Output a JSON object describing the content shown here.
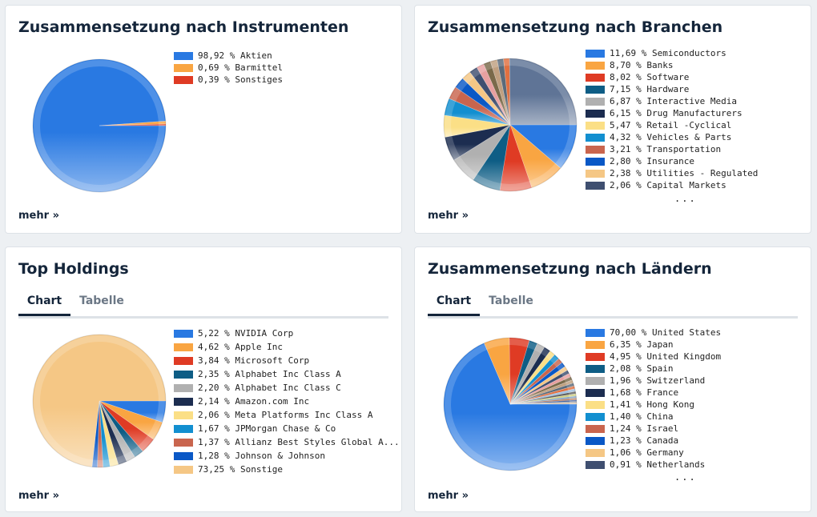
{
  "colors": [
    "#2979e2",
    "#f9a542",
    "#df3b24",
    "#0e5d85",
    "#b0b0b0",
    "#1c2d50",
    "#fbdf86",
    "#128fd0",
    "#c9654e",
    "#0a58c6",
    "#f5c785",
    "#3f4f70"
  ],
  "cards": {
    "instruments": {
      "title": "Zusammensetzung nach Instrumenten",
      "more": "mehr",
      "items": [
        {
          "label": "98,92 % Aktien",
          "value": 98.92,
          "color": "#2979e2"
        },
        {
          "label": "0,69 % Barmittel",
          "value": 0.69,
          "color": "#f9a542"
        },
        {
          "label": "0,39 % Sonstiges",
          "value": 0.39,
          "color": "#df3b24"
        }
      ]
    },
    "branchen": {
      "title": "Zusammensetzung nach Branchen",
      "more": "mehr",
      "ellipsis": "...",
      "items": [
        {
          "label": "11,69 % Semiconductors",
          "value": 11.69,
          "color": "#2979e2"
        },
        {
          "label": "8,70 % Banks",
          "value": 8.7,
          "color": "#f9a542"
        },
        {
          "label": "8,02 % Software",
          "value": 8.02,
          "color": "#df3b24"
        },
        {
          "label": "7,15 % Hardware",
          "value": 7.15,
          "color": "#0e5d85"
        },
        {
          "label": "6,87 % Interactive Media",
          "value": 6.87,
          "color": "#b0b0b0"
        },
        {
          "label": "6,15 % Drug Manufacturers",
          "value": 6.15,
          "color": "#1c2d50"
        },
        {
          "label": "5,47 % Retail -Cyclical",
          "value": 5.47,
          "color": "#fbdf86"
        },
        {
          "label": "4,32 % Vehicles & Parts",
          "value": 4.32,
          "color": "#128fd0"
        },
        {
          "label": "3,21 % Transportation",
          "value": 3.21,
          "color": "#c9654e"
        },
        {
          "label": "2,80 % Insurance",
          "value": 2.8,
          "color": "#0a58c6"
        },
        {
          "label": "2,38 % Utilities - Regulated",
          "value": 2.38,
          "color": "#f5c785"
        },
        {
          "label": "2,06 % Capital Markets",
          "value": 2.06,
          "color": "#3f4f70"
        }
      ],
      "extra_values": [
        1.9,
        1.8,
        1.7,
        1.6,
        1.5
      ],
      "extra_colors": [
        "#e8a0a0",
        "#7a6a4a",
        "#c0a080",
        "#5a6a7a",
        "#e07040"
      ],
      "remainder_value": 26.0,
      "remainder_color": "#5f7496"
    },
    "holdings": {
      "title": "Top Holdings",
      "more": "mehr",
      "tabs": [
        "Chart",
        "Tabelle"
      ],
      "items": [
        {
          "label": "5,22 % NVIDIA Corp",
          "value": 5.22,
          "color": "#2979e2"
        },
        {
          "label": "4,62 % Apple Inc",
          "value": 4.62,
          "color": "#f9a542"
        },
        {
          "label": "3,84 % Microsoft Corp",
          "value": 3.84,
          "color": "#df3b24"
        },
        {
          "label": "2,35 % Alphabet Inc Class A",
          "value": 2.35,
          "color": "#0e5d85"
        },
        {
          "label": "2,20 % Alphabet Inc Class C",
          "value": 2.2,
          "color": "#b0b0b0"
        },
        {
          "label": "2,14 % Amazon.com Inc",
          "value": 2.14,
          "color": "#1c2d50"
        },
        {
          "label": "2,06 % Meta Platforms Inc Class A",
          "value": 2.06,
          "color": "#fbdf86"
        },
        {
          "label": "1,67 % JPMorgan Chase & Co",
          "value": 1.67,
          "color": "#128fd0"
        },
        {
          "label": "1,37 % Allianz Best Styles Global A...",
          "value": 1.37,
          "color": "#c9654e"
        },
        {
          "label": "1,28 % Johnson & Johnson",
          "value": 1.28,
          "color": "#0a58c6"
        },
        {
          "label": "73,25 % Sonstige",
          "value": 73.25,
          "color": "#f5c785"
        }
      ]
    },
    "laender": {
      "title": "Zusammensetzung nach Ländern",
      "more": "mehr",
      "ellipsis": "...",
      "tabs": [
        "Chart",
        "Tabelle"
      ],
      "items": [
        {
          "label": "70,00 % United States",
          "value": 70.0,
          "color": "#2979e2"
        },
        {
          "label": "6,35 % Japan",
          "value": 6.35,
          "color": "#f9a542"
        },
        {
          "label": "4,95 % United Kingdom",
          "value": 4.95,
          "color": "#df3b24"
        },
        {
          "label": "2,08 % Spain",
          "value": 2.08,
          "color": "#0e5d85"
        },
        {
          "label": "1,96 % Switzerland",
          "value": 1.96,
          "color": "#b0b0b0"
        },
        {
          "label": "1,68 % France",
          "value": 1.68,
          "color": "#1c2d50"
        },
        {
          "label": "1,41 % Hong Kong",
          "value": 1.41,
          "color": "#fbdf86"
        },
        {
          "label": "1,40 % China",
          "value": 1.4,
          "color": "#128fd0"
        },
        {
          "label": "1,24 % Israel",
          "value": 1.24,
          "color": "#c9654e"
        },
        {
          "label": "1,23 % Canada",
          "value": 1.23,
          "color": "#0a58c6"
        },
        {
          "label": "1,06 % Germany",
          "value": 1.06,
          "color": "#f5c785"
        },
        {
          "label": "0,91 % Netherlands",
          "value": 0.91,
          "color": "#3f4f70"
        }
      ],
      "extra_values": [
        0.9,
        0.85,
        0.8,
        0.75,
        0.7,
        0.65,
        0.6,
        0.55,
        0.5,
        0.45,
        0.4,
        0.35,
        0.3
      ],
      "extra_colors": [
        "#e8a0a0",
        "#7a6a4a",
        "#c0a080",
        "#5a6a7a",
        "#e07040",
        "#a0c0e0",
        "#606060",
        "#d0d080",
        "#80a0c0",
        "#c08060",
        "#4060a0",
        "#a0a0a0",
        "#e0c0a0"
      ]
    }
  },
  "chart_data": [
    {
      "type": "pie",
      "title": "Zusammensetzung nach Instrumenten",
      "categories": [
        "Aktien",
        "Barmittel",
        "Sonstiges"
      ],
      "values": [
        98.92,
        0.69,
        0.39
      ]
    },
    {
      "type": "pie",
      "title": "Zusammensetzung nach Branchen",
      "categories": [
        "Semiconductors",
        "Banks",
        "Software",
        "Hardware",
        "Interactive Media",
        "Drug Manufacturers",
        "Retail -Cyclical",
        "Vehicles & Parts",
        "Transportation",
        "Insurance",
        "Utilities - Regulated",
        "Capital Markets"
      ],
      "values": [
        11.69,
        8.7,
        8.02,
        7.15,
        6.87,
        6.15,
        5.47,
        4.32,
        3.21,
        2.8,
        2.38,
        2.06
      ]
    },
    {
      "type": "pie",
      "title": "Top Holdings",
      "categories": [
        "NVIDIA Corp",
        "Apple Inc",
        "Microsoft Corp",
        "Alphabet Inc Class A",
        "Alphabet Inc Class C",
        "Amazon.com Inc",
        "Meta Platforms Inc Class A",
        "JPMorgan Chase & Co",
        "Allianz Best Styles Global A...",
        "Johnson & Johnson",
        "Sonstige"
      ],
      "values": [
        5.22,
        4.62,
        3.84,
        2.35,
        2.2,
        2.14,
        2.06,
        1.67,
        1.37,
        1.28,
        73.25
      ]
    },
    {
      "type": "pie",
      "title": "Zusammensetzung nach Ländern",
      "categories": [
        "United States",
        "Japan",
        "United Kingdom",
        "Spain",
        "Switzerland",
        "France",
        "Hong Kong",
        "China",
        "Israel",
        "Canada",
        "Germany",
        "Netherlands"
      ],
      "values": [
        70.0,
        6.35,
        4.95,
        2.08,
        1.96,
        1.68,
        1.41,
        1.4,
        1.24,
        1.23,
        1.06,
        0.91
      ]
    }
  ]
}
